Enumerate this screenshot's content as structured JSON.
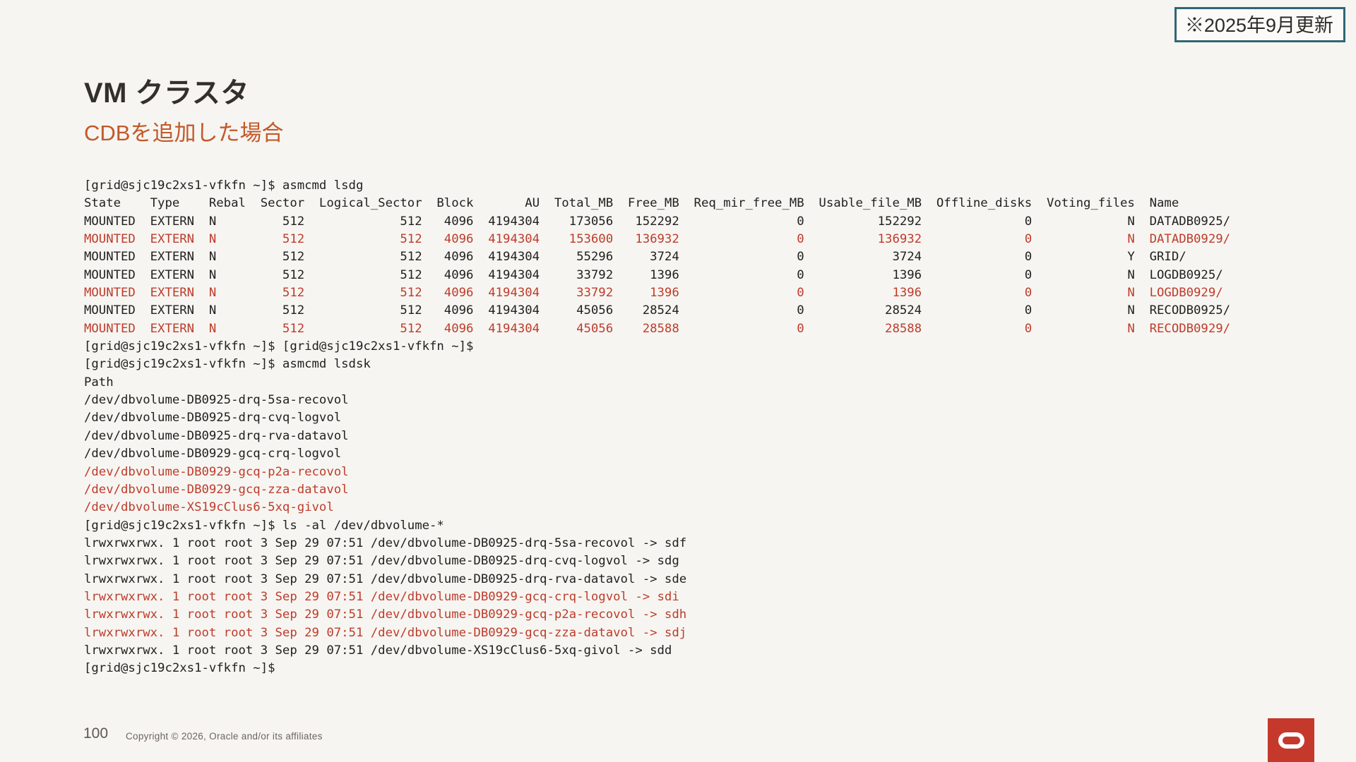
{
  "slide": {
    "update_badge": "※2025年9月更新",
    "title": "VM クラスタ",
    "subtitle": "CDBを追加した場合"
  },
  "terminal": {
    "lines": [
      {
        "text": "[grid@sjc19c2xs1-vfkfn ~]$ asmcmd lsdg",
        "highlight": false
      },
      {
        "text": "State    Type    Rebal  Sector  Logical_Sector  Block       AU  Total_MB  Free_MB  Req_mir_free_MB  Usable_file_MB  Offline_disks  Voting_files  Name",
        "highlight": false
      },
      {
        "text": "MOUNTED  EXTERN  N         512             512   4096  4194304    173056   152292                0          152292              0             N  DATADB0925/",
        "highlight": false
      },
      {
        "text": "MOUNTED  EXTERN  N         512             512   4096  4194304    153600   136932                0          136932              0             N  DATADB0929/",
        "highlight": true
      },
      {
        "text": "MOUNTED  EXTERN  N         512             512   4096  4194304     55296     3724                0            3724              0             Y  GRID/",
        "highlight": false
      },
      {
        "text": "MOUNTED  EXTERN  N         512             512   4096  4194304     33792     1396                0            1396              0             N  LOGDB0925/",
        "highlight": false
      },
      {
        "text": "MOUNTED  EXTERN  N         512             512   4096  4194304     33792     1396                0            1396              0             N  LOGDB0929/",
        "highlight": true
      },
      {
        "text": "MOUNTED  EXTERN  N         512             512   4096  4194304     45056    28524                0           28524              0             N  RECODB0925/",
        "highlight": false
      },
      {
        "text": "MOUNTED  EXTERN  N         512             512   4096  4194304     45056    28588                0           28588              0             N  RECODB0929/",
        "highlight": true
      },
      {
        "text": "[grid@sjc19c2xs1-vfkfn ~]$ [grid@sjc19c2xs1-vfkfn ~]$",
        "highlight": false
      },
      {
        "text": "[grid@sjc19c2xs1-vfkfn ~]$ asmcmd lsdsk",
        "highlight": false
      },
      {
        "text": "Path",
        "highlight": false
      },
      {
        "text": "/dev/dbvolume-DB0925-drq-5sa-recovol",
        "highlight": false
      },
      {
        "text": "/dev/dbvolume-DB0925-drq-cvq-logvol",
        "highlight": false
      },
      {
        "text": "/dev/dbvolume-DB0925-drq-rva-datavol",
        "highlight": false
      },
      {
        "text": "/dev/dbvolume-DB0929-gcq-crq-logvol",
        "highlight": false
      },
      {
        "text": "/dev/dbvolume-DB0929-gcq-p2a-recovol",
        "highlight": true
      },
      {
        "text": "/dev/dbvolume-DB0929-gcq-zza-datavol",
        "highlight": true
      },
      {
        "text": "/dev/dbvolume-XS19cClus6-5xq-givol",
        "highlight": true
      },
      {
        "text": "[grid@sjc19c2xs1-vfkfn ~]$ ls -al /dev/dbvolume-*",
        "highlight": false
      },
      {
        "text": "lrwxrwxrwx. 1 root root 3 Sep 29 07:51 /dev/dbvolume-DB0925-drq-5sa-recovol -> sdf",
        "highlight": false
      },
      {
        "text": "lrwxrwxrwx. 1 root root 3 Sep 29 07:51 /dev/dbvolume-DB0925-drq-cvq-logvol -> sdg",
        "highlight": false
      },
      {
        "text": "lrwxrwxrwx. 1 root root 3 Sep 29 07:51 /dev/dbvolume-DB0925-drq-rva-datavol -> sde",
        "highlight": false
      },
      {
        "text": "lrwxrwxrwx. 1 root root 3 Sep 29 07:51 /dev/dbvolume-DB0929-gcq-crq-logvol -> sdi",
        "highlight": true
      },
      {
        "text": "lrwxrwxrwx. 1 root root 3 Sep 29 07:51 /dev/dbvolume-DB0929-gcq-p2a-recovol -> sdh",
        "highlight": true
      },
      {
        "text": "lrwxrwxrwx. 1 root root 3 Sep 29 07:51 /dev/dbvolume-DB0929-gcq-zza-datavol -> sdj",
        "highlight": true
      },
      {
        "text": "lrwxrwxrwx. 1 root root 3 Sep 29 07:51 /dev/dbvolume-XS19cClus6-5xq-givol -> sdd",
        "highlight": false
      },
      {
        "text": "[grid@sjc19c2xs1-vfkfn ~]$",
        "highlight": false
      }
    ]
  },
  "lsdg_table": {
    "headers": [
      "State",
      "Type",
      "Rebal",
      "Sector",
      "Logical_Sector",
      "Block",
      "AU",
      "Total_MB",
      "Free_MB",
      "Req_mir_free_MB",
      "Usable_file_MB",
      "Offline_disks",
      "Voting_files",
      "Name"
    ],
    "rows": [
      {
        "highlight": false,
        "cells": [
          "MOUNTED",
          "EXTERN",
          "N",
          "512",
          "512",
          "4096",
          "4194304",
          "173056",
          "152292",
          "0",
          "152292",
          "0",
          "N",
          "DATADB0925/"
        ]
      },
      {
        "highlight": true,
        "cells": [
          "MOUNTED",
          "EXTERN",
          "N",
          "512",
          "512",
          "4096",
          "4194304",
          "153600",
          "136932",
          "0",
          "136932",
          "0",
          "N",
          "DATADB0929/"
        ]
      },
      {
        "highlight": false,
        "cells": [
          "MOUNTED",
          "EXTERN",
          "N",
          "512",
          "512",
          "4096",
          "4194304",
          "55296",
          "3724",
          "0",
          "3724",
          "0",
          "Y",
          "GRID/"
        ]
      },
      {
        "highlight": false,
        "cells": [
          "MOUNTED",
          "EXTERN",
          "N",
          "512",
          "512",
          "4096",
          "4194304",
          "33792",
          "1396",
          "0",
          "1396",
          "0",
          "N",
          "LOGDB0925/"
        ]
      },
      {
        "highlight": true,
        "cells": [
          "MOUNTED",
          "EXTERN",
          "N",
          "512",
          "512",
          "4096",
          "4194304",
          "33792",
          "1396",
          "0",
          "1396",
          "0",
          "N",
          "LOGDB0929/"
        ]
      },
      {
        "highlight": false,
        "cells": [
          "MOUNTED",
          "EXTERN",
          "N",
          "512",
          "512",
          "4096",
          "4194304",
          "45056",
          "28524",
          "0",
          "28524",
          "0",
          "N",
          "RECODB0925/"
        ]
      },
      {
        "highlight": true,
        "cells": [
          "MOUNTED",
          "EXTERN",
          "N",
          "512",
          "512",
          "4096",
          "4194304",
          "45056",
          "28588",
          "0",
          "28588",
          "0",
          "N",
          "RECODB0929/"
        ]
      }
    ]
  },
  "footer": {
    "page_number": "100",
    "copyright": "Copyright © 2026, Oracle and/or its affiliates"
  },
  "logo": {
    "icon": "oracle-o-icon"
  },
  "colors": {
    "background": "#f7f5f1",
    "title": "#33302c",
    "subtitle_accent": "#c2592a",
    "terminal_text": "#232120",
    "terminal_highlight": "#bd3c2c",
    "badge_border": "#2f6776",
    "logo_red": "#c5392c",
    "footer_text": "#5d5852"
  }
}
